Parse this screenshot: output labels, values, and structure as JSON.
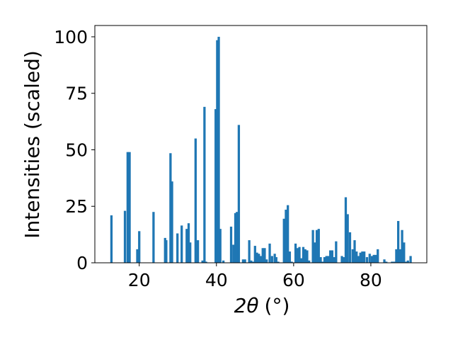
{
  "chart_data": {
    "type": "bar",
    "xlabel_main": "2θ",
    "xlabel_unit": "(°)",
    "ylabel": "Intensities (scaled)",
    "xlim": [
      8.5,
      94.5
    ],
    "ylim": [
      0,
      105
    ],
    "xticks": [
      20,
      40,
      60,
      80
    ],
    "yticks": [
      0,
      25,
      50,
      75,
      100
    ],
    "bar_color": "#1f77b4",
    "bar_width": 0.6,
    "grid": false,
    "x": [
      12.8,
      16.3,
      17.0,
      17.5,
      19.5,
      20.0,
      23.7,
      26.7,
      27.0,
      28.1,
      28.5,
      29.9,
      31.0,
      32.3,
      32.8,
      33.2,
      34.6,
      35.2,
      36.4,
      36.9,
      37.3,
      39.8,
      40.2,
      40.6,
      41.0,
      41.8,
      43.8,
      44.4,
      44.9,
      45.3,
      45.8,
      46.9,
      47.4,
      48.5,
      49.0,
      49.5,
      50.0,
      50.5,
      51.0,
      51.5,
      52.0,
      52.5,
      53.0,
      53.8,
      54.4,
      55.1,
      55.5,
      56.0,
      57.5,
      58.0,
      58.5,
      59.0,
      59.5,
      60.5,
      61.0,
      61.5,
      62.0,
      62.5,
      63.0,
      63.5,
      64.0,
      65.0,
      65.5,
      66.0,
      66.5,
      67.0,
      67.5,
      68.0,
      68.5,
      69.0,
      69.5,
      70.0,
      70.5,
      71.0,
      72.5,
      73.0,
      73.5,
      74.0,
      74.6,
      75.3,
      75.8,
      76.3,
      76.8,
      77.3,
      77.8,
      78.3,
      79.0,
      79.7,
      80.3,
      80.8,
      81.3,
      81.8,
      83.5,
      84.0,
      85.5,
      86.1,
      86.6,
      87.1,
      87.6,
      88.1,
      88.6,
      89.1,
      89.6,
      90.3
    ],
    "values": [
      21,
      23,
      49,
      49,
      6,
      14,
      22.5,
      11,
      10,
      48.5,
      36,
      13,
      16.5,
      15,
      17.5,
      9,
      55,
      10,
      1,
      69,
      0.5,
      68,
      98.5,
      100,
      15,
      1,
      16,
      8,
      22,
      22.5,
      61,
      1.5,
      1.5,
      10,
      1,
      0.5,
      7.5,
      4.5,
      4,
      3,
      6.5,
      6.5,
      1.5,
      8.5,
      3,
      4,
      2.5,
      0.5,
      19.5,
      23.5,
      25.5,
      5,
      0.5,
      8.5,
      6.5,
      7,
      2,
      7,
      6,
      5.5,
      1,
      14.5,
      9,
      14.5,
      15,
      2.5,
      0.5,
      2.5,
      3,
      3,
      5.5,
      5.5,
      2.5,
      9.5,
      3,
      2.5,
      29,
      21.5,
      13.5,
      6,
      10,
      5,
      3,
      4.5,
      5,
      5,
      2.5,
      4,
      3,
      3.5,
      3.5,
      6,
      1.5,
      0.5,
      0.5,
      0.5,
      6,
      18.5,
      6,
      14.5,
      9,
      0.5,
      1,
      3
    ]
  }
}
